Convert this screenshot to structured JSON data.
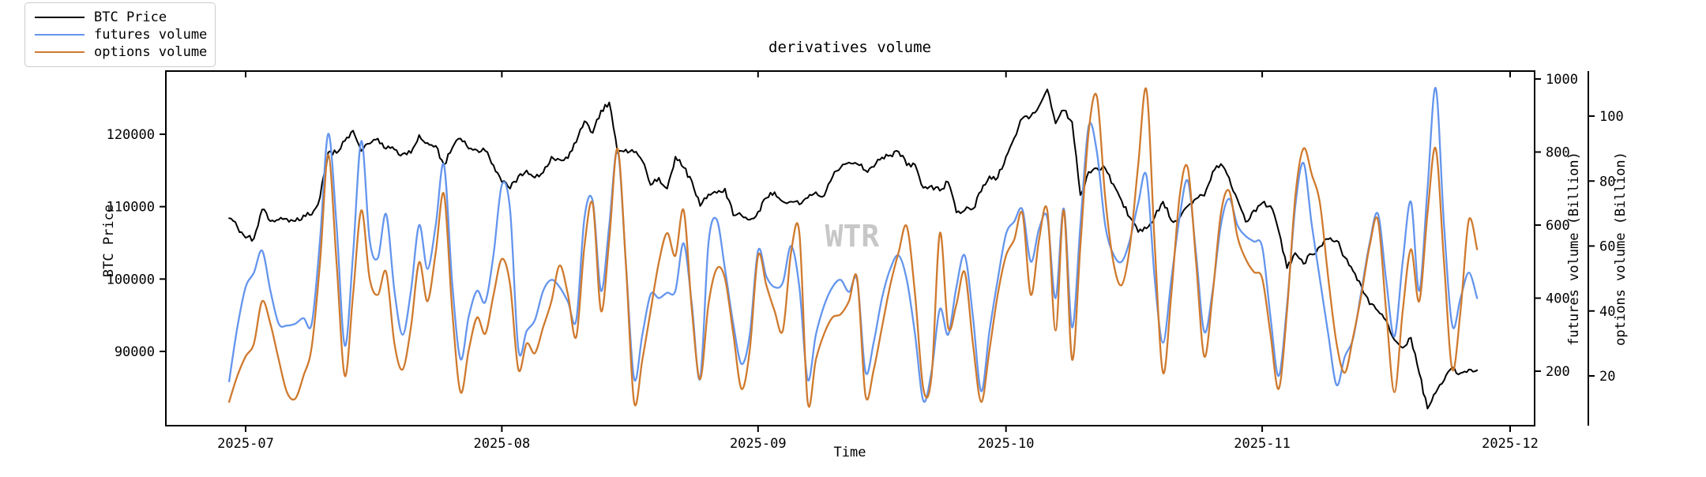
{
  "title": "derivatives volume",
  "watermark": "WTR",
  "legend": {
    "items": [
      {
        "label": "BTC Price"
      },
      {
        "label": "futures volume"
      },
      {
        "label": "options volume"
      }
    ]
  },
  "axes": {
    "bottom": {
      "label": "Time",
      "ticks": [
        "2025-07",
        "2025-08",
        "2025-09",
        "2025-10",
        "2025-11",
        "2025-12"
      ]
    },
    "left": {
      "label": "BTC Price",
      "ticks": [
        90000,
        100000,
        110000,
        120000
      ]
    },
    "right_futures": {
      "label": "futures volume (Billion)",
      "ticks": [
        200,
        400,
        600,
        800,
        1000
      ]
    },
    "right_options": {
      "label": "options volume (Billion)",
      "ticks": [
        20,
        40,
        60,
        80,
        100
      ]
    }
  },
  "chart_data": {
    "type": "line",
    "title": "derivatives volume",
    "xlabel": "Time",
    "x_range": [
      "2025-06-21",
      "2025-12-04"
    ],
    "grid": false,
    "legend_position": "upper-left-outside",
    "axis_ranges": {
      "price_ylim": [
        79700,
        128800
      ],
      "futures_ylim": [
        58,
        1021
      ],
      "options_ylim": [
        5,
        114
      ]
    },
    "dates": [
      "2025-06-29",
      "2025-06-30",
      "2025-07-01",
      "2025-07-02",
      "2025-07-03",
      "2025-07-04",
      "2025-07-05",
      "2025-07-06",
      "2025-07-07",
      "2025-07-08",
      "2025-07-09",
      "2025-07-10",
      "2025-07-11",
      "2025-07-12",
      "2025-07-13",
      "2025-07-14",
      "2025-07-15",
      "2025-07-16",
      "2025-07-17",
      "2025-07-18",
      "2025-07-19",
      "2025-07-20",
      "2025-07-21",
      "2025-07-22",
      "2025-07-23",
      "2025-07-24",
      "2025-07-25",
      "2025-07-26",
      "2025-07-27",
      "2025-07-28",
      "2025-07-29",
      "2025-07-30",
      "2025-07-31",
      "2025-08-01",
      "2025-08-02",
      "2025-08-03",
      "2025-08-04",
      "2025-08-05",
      "2025-08-06",
      "2025-08-07",
      "2025-08-08",
      "2025-08-09",
      "2025-08-10",
      "2025-08-11",
      "2025-08-12",
      "2025-08-13",
      "2025-08-14",
      "2025-08-15",
      "2025-08-16",
      "2025-08-17",
      "2025-08-18",
      "2025-08-19",
      "2025-08-20",
      "2025-08-21",
      "2025-08-22",
      "2025-08-23",
      "2025-08-24",
      "2025-08-25",
      "2025-08-26",
      "2025-08-27",
      "2025-08-28",
      "2025-08-29",
      "2025-08-30",
      "2025-08-31",
      "2025-09-01",
      "2025-09-02",
      "2025-09-03",
      "2025-09-04",
      "2025-09-05",
      "2025-09-06",
      "2025-09-07",
      "2025-09-08",
      "2025-09-09",
      "2025-09-10",
      "2025-09-11",
      "2025-09-12",
      "2025-09-13",
      "2025-09-14",
      "2025-09-15",
      "2025-09-16",
      "2025-09-17",
      "2025-09-18",
      "2025-09-19",
      "2025-09-20",
      "2025-09-21",
      "2025-09-22",
      "2025-09-23",
      "2025-09-24",
      "2025-09-25",
      "2025-09-26",
      "2025-09-27",
      "2025-09-28",
      "2025-09-29",
      "2025-09-30",
      "2025-10-01",
      "2025-10-02",
      "2025-10-03",
      "2025-10-04",
      "2025-10-05",
      "2025-10-06",
      "2025-10-07",
      "2025-10-08",
      "2025-10-09",
      "2025-10-10",
      "2025-10-11",
      "2025-10-12",
      "2025-10-13",
      "2025-10-14",
      "2025-10-15",
      "2025-10-16",
      "2025-10-17",
      "2025-10-18",
      "2025-10-19",
      "2025-10-20",
      "2025-10-21",
      "2025-10-22",
      "2025-10-23",
      "2025-10-24",
      "2025-10-25",
      "2025-10-26",
      "2025-10-27",
      "2025-10-28",
      "2025-10-29",
      "2025-10-30",
      "2025-10-31",
      "2025-11-01",
      "2025-11-02",
      "2025-11-03",
      "2025-11-04",
      "2025-11-05",
      "2025-11-06",
      "2025-11-07",
      "2025-11-08",
      "2025-11-09",
      "2025-11-10",
      "2025-11-11",
      "2025-11-12",
      "2025-11-13",
      "2025-11-14",
      "2025-11-15",
      "2025-11-16",
      "2025-11-17",
      "2025-11-18",
      "2025-11-19",
      "2025-11-20",
      "2025-11-21",
      "2025-11-22",
      "2025-11-23",
      "2025-11-24",
      "2025-11-25",
      "2025-11-26",
      "2025-11-27"
    ],
    "series": [
      {
        "name": "BTC Price",
        "axis": "price",
        "color": "#000000",
        "values": [
          108400,
          107200,
          105700,
          105600,
          109600,
          108000,
          108200,
          108300,
          108000,
          108800,
          108900,
          111300,
          117500,
          117400,
          119100,
          120500,
          117700,
          118700,
          119400,
          118000,
          117900,
          117300,
          117400,
          119900,
          118800,
          118400,
          115800,
          118100,
          119400,
          118000,
          117800,
          117700,
          115700,
          113400,
          112500,
          114200,
          115000,
          114000,
          114700,
          116900,
          116500,
          116700,
          118900,
          121800,
          120200,
          123300,
          124400,
          117400,
          117900,
          117500,
          116300,
          113000,
          114000,
          112500,
          116900,
          115400,
          113500,
          110100,
          111700,
          111900,
          112500,
          108800,
          108800,
          108200,
          109300,
          111200,
          112000,
          110700,
          110700,
          110300,
          111200,
          112000,
          111500,
          114100,
          115400,
          116100,
          115900,
          115000,
          115500,
          116800,
          117100,
          117600,
          115700,
          115800,
          112600,
          112900,
          112200,
          113400,
          109200,
          109500,
          109700,
          112100,
          114200,
          114000,
          116900,
          119500,
          122200,
          122500,
          123900,
          126200,
          121500,
          123300,
          121700,
          111600,
          114800,
          115300,
          115300,
          113100,
          110800,
          108500,
          106500,
          107000,
          108600,
          110700,
          108100,
          108400,
          110100,
          111100,
          111500,
          114800,
          115900,
          114000,
          111000,
          107900,
          109500,
          110500,
          110100,
          106600,
          101500,
          103600,
          102100,
          103400,
          104500,
          105500,
          105300,
          103000,
          101100,
          99000,
          96500,
          95600,
          94300,
          91600,
          90500,
          91900,
          87000,
          82100,
          84300,
          86000,
          87800,
          87000,
          87500,
          87400
        ]
      },
      {
        "name": "futures volume",
        "axis": "futures",
        "color": "#6495ed",
        "values": [
          172,
          320,
          430,
          470,
          530,
          420,
          330,
          325,
          330,
          345,
          330,
          560,
          850,
          600,
          270,
          520,
          830,
          560,
          510,
          630,
          420,
          300,
          420,
          600,
          480,
          600,
          765,
          440,
          233,
          350,
          420,
          390,
          520,
          710,
          640,
          260,
          310,
          340,
          420,
          450,
          430,
          390,
          340,
          620,
          665,
          420,
          600,
          805,
          500,
          180,
          300,
          410,
          400,
          415,
          420,
          550,
          380,
          180,
          550,
          615,
          480,
          330,
          220,
          300,
          530,
          460,
          430,
          443,
          543,
          430,
          177,
          300,
          380,
          430,
          450,
          417,
          448,
          198,
          280,
          400,
          480,
          517,
          450,
          300,
          119,
          200,
          370,
          300,
          430,
          517,
          350,
          145,
          310,
          450,
          575,
          610,
          642,
          500,
          590,
          620,
          400,
          645,
          320,
          600,
          870,
          800,
          600,
          520,
          500,
          560,
          660,
          735,
          450,
          278,
          450,
          620,
          721,
          520,
          308,
          420,
          600,
          672,
          600,
          570,
          555,
          540,
          350,
          187,
          380,
          650,
          770,
          600,
          450,
          300,
          162,
          240,
          290,
          420,
          550,
          631,
          450,
          295,
          500,
          664,
          420,
          700,
          975,
          600,
          325,
          400,
          470,
          400
        ]
      },
      {
        "name": "options volume",
        "axis": "options",
        "color": "#cf7a2e",
        "values": [
          12,
          20,
          26,
          30,
          43,
          36,
          25,
          15,
          13,
          20,
          29,
          55,
          88,
          55,
          20,
          45,
          71,
          50,
          45,
          52,
          30,
          22,
          35,
          55,
          43,
          58,
          76,
          40,
          15,
          28,
          38,
          33,
          45,
          56,
          48,
          22,
          30,
          27,
          35,
          43,
          54,
          45,
          32,
          60,
          73,
          40,
          62,
          90,
          55,
          12,
          25,
          40,
          55,
          64,
          57,
          71,
          40,
          19,
          42,
          53,
          50,
          33,
          16,
          28,
          57,
          48,
          40,
          34,
          58,
          64,
          12,
          25,
          33,
          38,
          39,
          43,
          50,
          14,
          22,
          35,
          48,
          58,
          66,
          45,
          16,
          20,
          64,
          35,
          42,
          52,
          30,
          12,
          28,
          45,
          57,
          62,
          70,
          45,
          62,
          71,
          34,
          71,
          25,
          60,
          95,
          106,
          75,
          55,
          48,
          60,
          85,
          108,
          60,
          21,
          45,
          75,
          84,
          55,
          26,
          45,
          70,
          77,
          63,
          56,
          52,
          50,
          33,
          16,
          40,
          75,
          90,
          82,
          73,
          50,
          30,
          21,
          32,
          45,
          60,
          68,
          40,
          15,
          40,
          59,
          43,
          70,
          90,
          55,
          22,
          40,
          68,
          59
        ]
      }
    ]
  }
}
